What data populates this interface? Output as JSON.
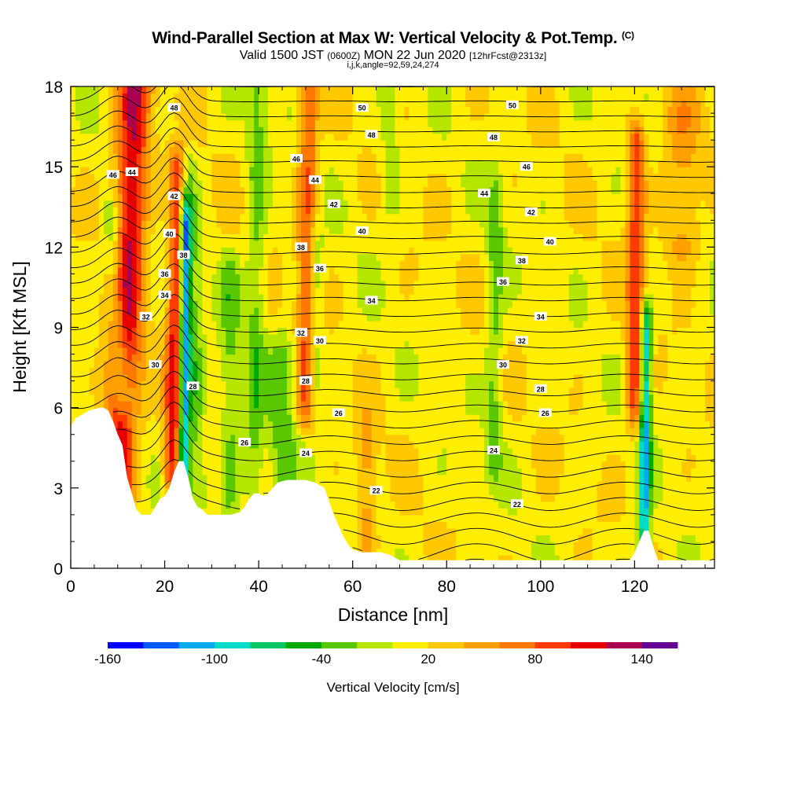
{
  "title": {
    "main": "Wind-Parallel Section at Max W: Vertical Velocity & Pot.Temp.",
    "copyright": "(C)",
    "valid_prefix": "Valid 1500 JST",
    "valid_zulu": "(0600Z)",
    "valid_date": "MON 22 Jun 2020",
    "forecast": "[12hrFcst@2313z]",
    "indices": "i,j,k,angle=92,59,24,274"
  },
  "chart_data": {
    "type": "heatmap",
    "xlabel": "Distance [nm]",
    "ylabel": "Height [Kft MSL]",
    "xlim": [
      0,
      137
    ],
    "ylim": [
      0,
      18
    ],
    "x_ticks": [
      0,
      20,
      40,
      60,
      80,
      100,
      120
    ],
    "y_ticks": [
      0,
      3,
      6,
      9,
      12,
      15,
      18
    ],
    "colorbar": {
      "label": "Vertical Velocity [cm/s]",
      "bounds": [
        -160,
        -140,
        -120,
        -100,
        -80,
        -60,
        -40,
        -20,
        0,
        20,
        40,
        60,
        80,
        100,
        120,
        140,
        160
      ],
      "tick_labels": [
        "-160",
        "-100",
        "-40",
        "20",
        "80",
        "140"
      ],
      "tick_values": [
        -160,
        -100,
        -40,
        20,
        80,
        140
      ],
      "colors": [
        "#0000ff",
        "#005aff",
        "#00aaee",
        "#00dcc8",
        "#00c864",
        "#00aa00",
        "#5ac800",
        "#b4e600",
        "#ffee00",
        "#ffc800",
        "#ffa000",
        "#ff7800",
        "#ff3c00",
        "#e60000",
        "#aa0050",
        "#640096"
      ]
    },
    "velocity_features": [
      {
        "x": 10,
        "z0": 3,
        "z1": 18,
        "w": 110,
        "width": 3.5,
        "tilt": 0.25
      },
      {
        "x": 11,
        "z0": 6.5,
        "z1": 13,
        "w": -55,
        "width": 2,
        "tilt": -0.35
      },
      {
        "x": 21.5,
        "z0": 3.5,
        "z1": 15,
        "w": 95,
        "width": 1.8,
        "tilt": 0.12
      },
      {
        "x": 24,
        "z0": 2,
        "z1": 13,
        "w": -120,
        "width": 1.1,
        "tilt": 0.03
      },
      {
        "x": 27,
        "z0": 3,
        "z1": 15,
        "w": -45,
        "width": 2,
        "tilt": -0.2
      },
      {
        "x": 34,
        "z0": 2.5,
        "z1": 11,
        "w": -35,
        "width": 2.2,
        "tilt": 0
      },
      {
        "x": 39,
        "z0": 3,
        "z1": 18,
        "w": -40,
        "width": 2,
        "tilt": 0.05
      },
      {
        "x": 45,
        "z0": 3,
        "z1": 8,
        "w": -40,
        "width": 3,
        "tilt": 0
      },
      {
        "x": 50,
        "z0": 6,
        "z1": 18,
        "w": 70,
        "width": 2,
        "tilt": 0.05
      },
      {
        "x": 52,
        "z0": 7,
        "z1": 12,
        "w": -40,
        "width": 1.5,
        "tilt": 0
      },
      {
        "x": 68,
        "z0": 14,
        "z1": 18,
        "w": -30,
        "width": 2,
        "tilt": 0
      },
      {
        "x": 63,
        "z0": 1,
        "z1": 5,
        "w": 40,
        "width": 2,
        "tilt": 0
      },
      {
        "x": 90,
        "z0": 4,
        "z1": 14,
        "w": -40,
        "width": 1.8,
        "tilt": 0.05
      },
      {
        "x": 120,
        "z0": 6,
        "z1": 16,
        "w": 85,
        "width": 1.8,
        "tilt": 0.05
      },
      {
        "x": 122,
        "z0": 0.5,
        "z1": 9,
        "w": -120,
        "width": 1.2,
        "tilt": 0.05
      },
      {
        "x": 130,
        "z0": 12,
        "z1": 17,
        "w": 40,
        "width": 4,
        "tilt": 0
      }
    ],
    "terrain": [
      [
        0,
        5.3
      ],
      [
        1,
        5.6
      ],
      [
        2,
        5.7
      ],
      [
        3,
        5.8
      ],
      [
        4,
        5.9
      ],
      [
        5,
        5.95
      ],
      [
        6,
        6.0
      ],
      [
        7,
        6.0
      ],
      [
        8,
        5.9
      ],
      [
        9,
        5.5
      ],
      [
        10,
        5.0
      ],
      [
        11,
        4.6
      ],
      [
        12,
        3.4
      ],
      [
        13,
        2.8
      ],
      [
        14,
        2.2
      ],
      [
        15,
        2.0
      ],
      [
        16,
        2.0
      ],
      [
        17,
        2.0
      ],
      [
        18,
        2.3
      ],
      [
        19,
        2.6
      ],
      [
        20,
        2.7
      ],
      [
        21,
        3.0
      ],
      [
        22,
        3.6
      ],
      [
        23,
        4.0
      ],
      [
        24,
        4.0
      ],
      [
        25,
        3.4
      ],
      [
        26,
        2.6
      ],
      [
        27,
        2.3
      ],
      [
        28,
        2.2
      ],
      [
        29,
        2.0
      ],
      [
        30,
        2.0
      ],
      [
        32,
        2.0
      ],
      [
        34,
        2.0
      ],
      [
        36,
        2.1
      ],
      [
        37,
        2.3
      ],
      [
        38,
        2.6
      ],
      [
        39,
        2.8
      ],
      [
        40,
        2.8
      ],
      [
        41,
        2.7
      ],
      [
        42,
        2.8
      ],
      [
        43,
        3.0
      ],
      [
        44,
        3.2
      ],
      [
        46,
        3.3
      ],
      [
        48,
        3.3
      ],
      [
        50,
        3.3
      ],
      [
        52,
        3.2
      ],
      [
        54,
        3.0
      ],
      [
        55,
        2.5
      ],
      [
        56,
        2.0
      ],
      [
        57,
        1.6
      ],
      [
        58,
        1.2
      ],
      [
        59,
        0.9
      ],
      [
        60,
        0.7
      ],
      [
        62,
        0.6
      ],
      [
        64,
        0.6
      ],
      [
        66,
        0.6
      ],
      [
        68,
        0.5
      ],
      [
        70,
        0.3
      ],
      [
        75,
        0.3
      ],
      [
        80,
        0.3
      ],
      [
        85,
        0.3
      ],
      [
        90,
        0.3
      ],
      [
        95,
        0.3
      ],
      [
        100,
        0.3
      ],
      [
        105,
        0.3
      ],
      [
        110,
        0.3
      ],
      [
        115,
        0.3
      ],
      [
        119,
        0.3
      ],
      [
        120,
        0.6
      ],
      [
        121,
        1.0
      ],
      [
        122,
        1.4
      ],
      [
        123,
        1.4
      ],
      [
        124,
        0.8
      ],
      [
        125,
        0.3
      ],
      [
        130,
        0.3
      ],
      [
        137,
        0.3
      ]
    ],
    "contours": {
      "interval": 1,
      "range": [
        18,
        52
      ],
      "labels": [
        {
          "text": "48",
          "x": 22,
          "z": 17.2
        },
        {
          "text": "50",
          "x": 62,
          "z": 17.2
        },
        {
          "text": "50",
          "x": 94,
          "z": 17.3
        },
        {
          "text": "48",
          "x": 64,
          "z": 16.2
        },
        {
          "text": "48",
          "x": 90,
          "z": 16.1
        },
        {
          "text": "46",
          "x": 9,
          "z": 14.7
        },
        {
          "text": "44",
          "x": 13,
          "z": 14.8
        },
        {
          "text": "46",
          "x": 48,
          "z": 15.3
        },
        {
          "text": "46",
          "x": 97,
          "z": 15.0
        },
        {
          "text": "44",
          "x": 52,
          "z": 14.5
        },
        {
          "text": "44",
          "x": 88,
          "z": 14.0
        },
        {
          "text": "42",
          "x": 22,
          "z": 13.9
        },
        {
          "text": "42",
          "x": 56,
          "z": 13.6
        },
        {
          "text": "42",
          "x": 98,
          "z": 13.3
        },
        {
          "text": "40",
          "x": 21,
          "z": 12.5
        },
        {
          "text": "40",
          "x": 62,
          "z": 12.6
        },
        {
          "text": "40",
          "x": 102,
          "z": 12.2
        },
        {
          "text": "38",
          "x": 24,
          "z": 11.7
        },
        {
          "text": "38",
          "x": 49,
          "z": 12.0
        },
        {
          "text": "38",
          "x": 96,
          "z": 11.5
        },
        {
          "text": "36",
          "x": 20,
          "z": 11.0
        },
        {
          "text": "36",
          "x": 53,
          "z": 11.2
        },
        {
          "text": "36",
          "x": 92,
          "z": 10.7
        },
        {
          "text": "34",
          "x": 20,
          "z": 10.2
        },
        {
          "text": "34",
          "x": 64,
          "z": 10.0
        },
        {
          "text": "34",
          "x": 100,
          "z": 9.4
        },
        {
          "text": "32",
          "x": 16,
          "z": 9.4
        },
        {
          "text": "32",
          "x": 49,
          "z": 8.8
        },
        {
          "text": "32",
          "x": 96,
          "z": 8.5
        },
        {
          "text": "30",
          "x": 18,
          "z": 7.6
        },
        {
          "text": "30",
          "x": 53,
          "z": 8.5
        },
        {
          "text": "30",
          "x": 92,
          "z": 7.6
        },
        {
          "text": "28",
          "x": 26,
          "z": 6.8
        },
        {
          "text": "28",
          "x": 50,
          "z": 7.0
        },
        {
          "text": "28",
          "x": 100,
          "z": 6.7
        },
        {
          "text": "26",
          "x": 57,
          "z": 5.8
        },
        {
          "text": "26",
          "x": 101,
          "z": 5.8
        },
        {
          "text": "26",
          "x": 37,
          "z": 4.7
        },
        {
          "text": "24",
          "x": 50,
          "z": 4.3
        },
        {
          "text": "24",
          "x": 90,
          "z": 4.4
        },
        {
          "text": "22",
          "x": 65,
          "z": 2.9
        },
        {
          "text": "22",
          "x": 95,
          "z": 2.4
        }
      ]
    }
  }
}
